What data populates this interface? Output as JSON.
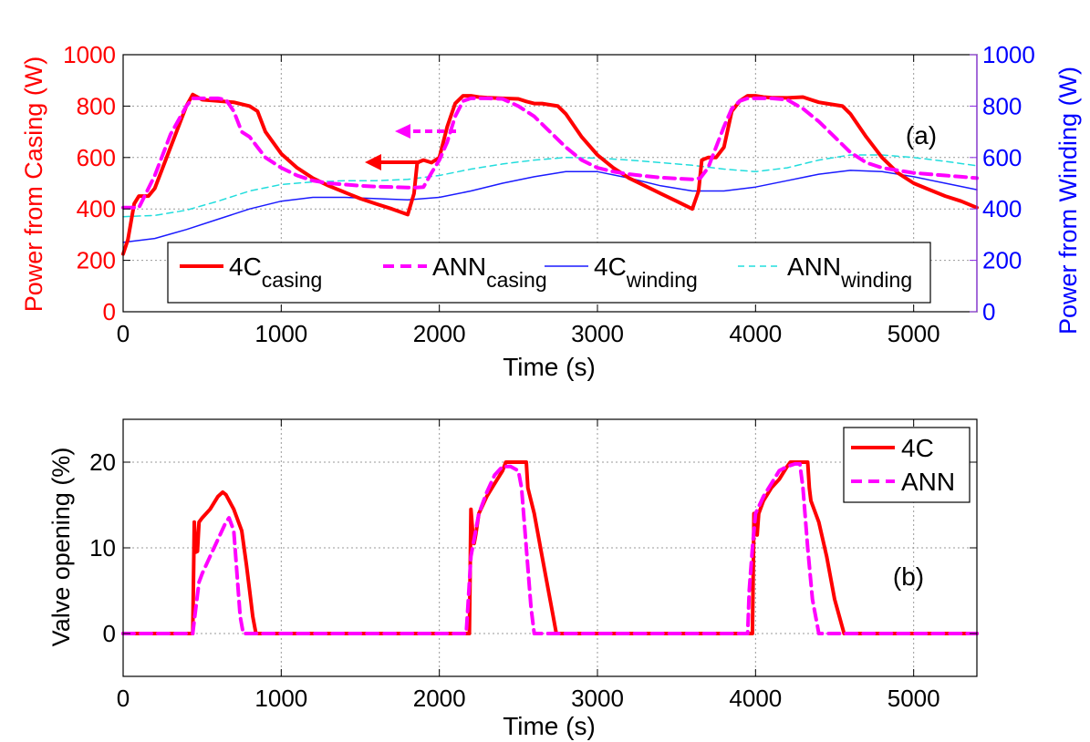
{
  "chart_data": [
    {
      "type": "line",
      "panel_label": "(a)",
      "xlabel": "Time (s)",
      "ylabel": "Power from Casing (W)",
      "y2label": "Power from Winding (W)",
      "xlim": [
        0,
        5400
      ],
      "ylim": [
        0,
        1000
      ],
      "y2lim": [
        0,
        1000
      ],
      "x_ticks": [
        0,
        1000,
        2000,
        3000,
        4000,
        5000
      ],
      "y_ticks": [
        0,
        200,
        400,
        600,
        800,
        1000
      ],
      "y2_ticks": [
        0,
        200,
        400,
        600,
        800,
        1000
      ],
      "grid": true,
      "legend_position": "bottom",
      "colors": {
        "left_axis": "#ff0000",
        "right_axis": "#0000ff"
      },
      "series": [
        {
          "name": "4C",
          "subscript": "casing",
          "axis": "left",
          "color": "#ff0000",
          "style": "solid",
          "width": 4,
          "x": [
            0,
            30,
            70,
            100,
            160,
            200,
            300,
            400,
            440,
            500,
            600,
            700,
            800,
            850,
            900,
            1000,
            1100,
            1200,
            1300,
            1400,
            1500,
            1600,
            1700,
            1800,
            1840,
            1860,
            1900,
            1950,
            2000,
            2050,
            2100,
            2150,
            2200,
            2250,
            2300,
            2400,
            2500,
            2550,
            2600,
            2650,
            2700,
            2750,
            2800,
            2900,
            3000,
            3100,
            3200,
            3300,
            3400,
            3500,
            3600,
            3640,
            3660,
            3700,
            3750,
            3800,
            3850,
            3900,
            3950,
            4000,
            4050,
            4100,
            4200,
            4300,
            4350,
            4400,
            4450,
            4500,
            4550,
            4600,
            4700,
            4800,
            4900,
            5000,
            5100,
            5200,
            5300,
            5400
          ],
          "y": [
            225,
            280,
            420,
            450,
            450,
            480,
            640,
            800,
            845,
            825,
            820,
            815,
            800,
            780,
            700,
            615,
            560,
            520,
            490,
            465,
            440,
            420,
            400,
            378,
            460,
            580,
            590,
            580,
            600,
            720,
            810,
            840,
            840,
            835,
            833,
            830,
            828,
            818,
            810,
            810,
            805,
            800,
            770,
            680,
            610,
            560,
            520,
            490,
            460,
            430,
            400,
            470,
            590,
            600,
            600,
            640,
            780,
            820,
            840,
            840,
            835,
            833,
            832,
            835,
            825,
            815,
            810,
            805,
            800,
            770,
            680,
            600,
            540,
            500,
            475,
            450,
            430,
            405
          ]
        },
        {
          "name": "ANN",
          "subscript": "casing",
          "axis": "left",
          "color": "#ff00ff",
          "style": "dashed",
          "width": 4,
          "x": [
            0,
            100,
            200,
            300,
            400,
            440,
            500,
            600,
            650,
            700,
            750,
            800,
            850,
            900,
            1000,
            1100,
            1200,
            1300,
            1400,
            1500,
            1600,
            1700,
            1800,
            1850,
            1900,
            1950,
            2000,
            2050,
            2100,
            2150,
            2200,
            2300,
            2400,
            2500,
            2600,
            2700,
            2800,
            2900,
            3000,
            3100,
            3200,
            3300,
            3400,
            3500,
            3600,
            3650,
            3700,
            3750,
            3800,
            3850,
            3900,
            3950,
            4000,
            4100,
            4200,
            4300,
            4400,
            4500,
            4600,
            4700,
            4800,
            4900,
            5000,
            5100,
            5200,
            5300,
            5400
          ],
          "y": [
            405,
            405,
            530,
            690,
            800,
            830,
            830,
            830,
            825,
            780,
            700,
            680,
            640,
            600,
            560,
            530,
            510,
            500,
            495,
            490,
            487,
            485,
            483,
            483,
            485,
            540,
            590,
            660,
            760,
            820,
            830,
            830,
            828,
            800,
            760,
            700,
            640,
            590,
            560,
            545,
            535,
            528,
            522,
            518,
            515,
            520,
            560,
            640,
            720,
            790,
            820,
            830,
            830,
            830,
            825,
            790,
            740,
            680,
            620,
            580,
            560,
            550,
            540,
            535,
            530,
            525,
            520
          ]
        },
        {
          "name": "4C",
          "subscript": "winding",
          "axis": "right",
          "color": "#1a1aff",
          "style": "solid",
          "width": 1.5,
          "x": [
            0,
            200,
            400,
            600,
            800,
            1000,
            1200,
            1400,
            1600,
            1800,
            2000,
            2200,
            2400,
            2600,
            2800,
            3000,
            3200,
            3400,
            3600,
            3800,
            4000,
            4200,
            4400,
            4600,
            4800,
            5000,
            5200,
            5400
          ],
          "y": [
            270,
            285,
            320,
            360,
            400,
            430,
            445,
            445,
            440,
            435,
            445,
            470,
            500,
            525,
            545,
            545,
            520,
            490,
            470,
            470,
            485,
            510,
            535,
            550,
            545,
            525,
            500,
            475
          ]
        },
        {
          "name": "ANN",
          "subscript": "winding",
          "axis": "right",
          "color": "#22dddd",
          "style": "dashed",
          "width": 1.5,
          "x": [
            0,
            200,
            400,
            600,
            800,
            1000,
            1200,
            1400,
            1600,
            1800,
            2000,
            2200,
            2400,
            2600,
            2800,
            3000,
            3200,
            3400,
            3600,
            3800,
            4000,
            4200,
            4400,
            4600,
            4800,
            5000,
            5200,
            5400
          ],
          "y": [
            370,
            375,
            395,
            430,
            470,
            495,
            505,
            510,
            510,
            515,
            530,
            555,
            575,
            590,
            600,
            598,
            590,
            580,
            570,
            555,
            545,
            560,
            590,
            610,
            610,
            600,
            585,
            568
          ]
        }
      ]
    },
    {
      "type": "line",
      "panel_label": "(b)",
      "xlabel": "Time (s)",
      "ylabel": "Valve opening (%)",
      "xlim": [
        0,
        5400
      ],
      "ylim": [
        -5,
        25
      ],
      "x_ticks": [
        0,
        1000,
        2000,
        3000,
        4000,
        5000
      ],
      "y_ticks": [
        0,
        10,
        20
      ],
      "grid": true,
      "legend_position": "top-right",
      "series": [
        {
          "name": "4C",
          "color": "#ff0000",
          "style": "solid",
          "width": 4,
          "x": [
            0,
            440,
            450,
            460,
            470,
            480,
            500,
            550,
            600,
            630,
            650,
            700,
            750,
            780,
            800,
            820,
            840,
            2190,
            2200,
            2210,
            2220,
            2230,
            2250,
            2300,
            2350,
            2400,
            2420,
            2450,
            2500,
            2550,
            2560,
            2600,
            2650,
            2700,
            2720,
            2740,
            3980,
            3990,
            4000,
            4010,
            4020,
            4050,
            4100,
            4150,
            4200,
            4220,
            4250,
            4300,
            4330,
            4340,
            4350,
            4400,
            4450,
            4500,
            4530,
            4560,
            5400
          ],
          "y": [
            0,
            0,
            13,
            9.5,
            9.6,
            13,
            13.5,
            14.5,
            16,
            16.5,
            16.2,
            14.5,
            12,
            8,
            5,
            2,
            0,
            0,
            14.5,
            12,
            10.5,
            11.5,
            14,
            16,
            17.5,
            19,
            20,
            20,
            20,
            20,
            17,
            14,
            9,
            4,
            2,
            0,
            0,
            14,
            12.5,
            11.5,
            14,
            15.5,
            17,
            18,
            19.5,
            20,
            20,
            20,
            20,
            17,
            15.5,
            13,
            9,
            4,
            2,
            0,
            0
          ]
        },
        {
          "name": "ANN",
          "color": "#ff00ff",
          "style": "dashed",
          "width": 4,
          "x": [
            0,
            440,
            460,
            480,
            500,
            550,
            600,
            650,
            670,
            700,
            720,
            740,
            760,
            2170,
            2180,
            2200,
            2250,
            2300,
            2350,
            2400,
            2450,
            2500,
            2520,
            2550,
            2580,
            2600,
            3950,
            3960,
            3980,
            4000,
            4050,
            4100,
            4150,
            4200,
            4250,
            4280,
            4300,
            4330,
            4360,
            4400,
            5400
          ],
          "y": [
            0,
            0,
            3,
            6,
            7,
            9,
            11,
            13,
            13.5,
            12,
            7,
            2,
            0,
            0,
            3,
            9,
            14,
            16.5,
            18.5,
            19.5,
            19.5,
            19,
            17,
            10,
            3,
            0,
            0,
            5,
            10,
            14,
            16,
            17.5,
            19,
            19.5,
            19.8,
            19.8,
            17,
            10,
            4,
            0,
            0
          ]
        }
      ]
    }
  ]
}
